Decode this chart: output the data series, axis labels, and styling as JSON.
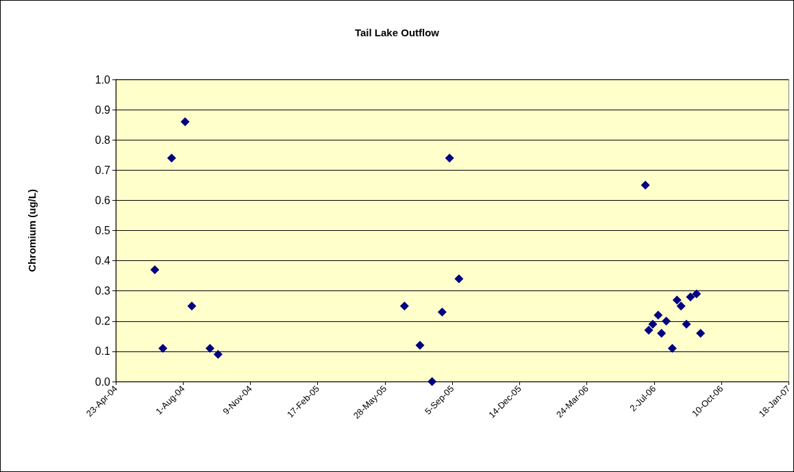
{
  "chart_data": {
    "type": "scatter",
    "title": "Tail Lake Outflow",
    "ylabel": "Chromium (ug/L)",
    "x": [
      "2004-06-20",
      "2004-07-02",
      "2004-07-15",
      "2004-08-04",
      "2004-08-14",
      "2004-09-10",
      "2004-09-22",
      "2005-06-26",
      "2005-07-19",
      "2005-08-06",
      "2005-08-21",
      "2005-09-01",
      "2005-09-15",
      "2006-06-19",
      "2006-06-24",
      "2006-06-30",
      "2006-07-08",
      "2006-07-13",
      "2006-07-20",
      "2006-07-29",
      "2006-08-05",
      "2006-08-11",
      "2006-08-19",
      "2006-08-25",
      "2006-09-03",
      "2006-09-09"
    ],
    "series": [
      {
        "color": "#000080",
        "values": [
          0.37,
          0.11,
          0.74,
          0.86,
          0.25,
          0.11,
          0.09,
          0.25,
          0.12,
          0.0,
          0.23,
          0.74,
          0.34,
          0.65,
          0.17,
          0.19,
          0.22,
          0.16,
          0.2,
          0.11,
          0.27,
          0.25,
          0.19,
          0.28,
          0.29,
          0.16
        ]
      }
    ],
    "xlim": [
      "2004-04-23",
      "2007-01-18"
    ],
    "xticks": [
      {
        "value": "2004-04-23",
        "label": "23-Apr-04"
      },
      {
        "value": "2004-08-01",
        "label": "1-Aug-04"
      },
      {
        "value": "2004-11-09",
        "label": "9-Nov-04"
      },
      {
        "value": "2005-02-17",
        "label": "17-Feb-05"
      },
      {
        "value": "2005-05-28",
        "label": "28-May-05"
      },
      {
        "value": "2005-09-05",
        "label": "5-Sep-05"
      },
      {
        "value": "2005-12-14",
        "label": "14-Dec-05"
      },
      {
        "value": "2006-03-24",
        "label": "24-Mar-06"
      },
      {
        "value": "2006-07-02",
        "label": "2-Jul-06"
      },
      {
        "value": "2006-10-10",
        "label": "10-Oct-06"
      },
      {
        "value": "2007-01-18",
        "label": "18-Jan-07"
      }
    ],
    "ylim": [
      0,
      1
    ],
    "yticks": [
      {
        "value": 0,
        "label": "0.0"
      },
      {
        "value": 0.1,
        "label": "0.1"
      },
      {
        "value": 0.2,
        "label": "0.2"
      },
      {
        "value": 0.3,
        "label": "0.3"
      },
      {
        "value": 0.4,
        "label": "0.4"
      },
      {
        "value": 0.5,
        "label": "0.5"
      },
      {
        "value": 0.6,
        "label": "0.6"
      },
      {
        "value": 0.7,
        "label": "0.7"
      },
      {
        "value": 0.8,
        "label": "0.8"
      },
      {
        "value": 0.9,
        "label": "0.9"
      },
      {
        "value": 1,
        "label": "1.0"
      }
    ],
    "grid": "y",
    "marker": "diamond"
  }
}
